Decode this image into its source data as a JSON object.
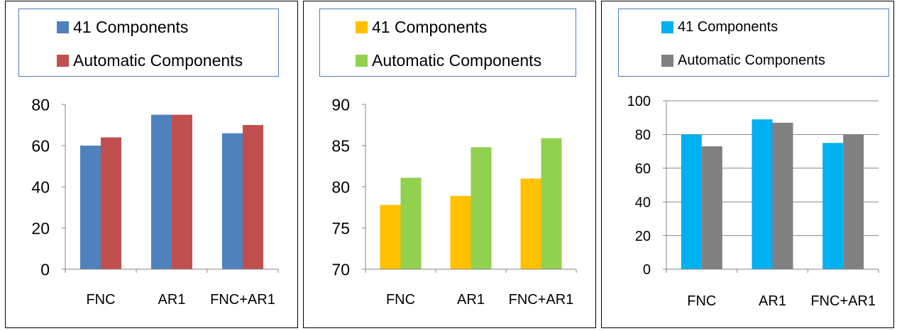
{
  "chart_data": [
    {
      "type": "bar",
      "categories": [
        "FNC",
        "AR1",
        "FNC+AR1"
      ],
      "series": [
        {
          "name": "41 Components",
          "values": [
            60,
            75,
            66
          ],
          "color": "#4f81bd"
        },
        {
          "name": "Automatic Components",
          "values": [
            64,
            75,
            70
          ],
          "color": "#c0504d"
        }
      ],
      "ylim": [
        0,
        80
      ],
      "yticks": [
        "0",
        "20",
        "40",
        "60",
        "80"
      ],
      "grid": false,
      "legend_position": "top"
    },
    {
      "type": "bar",
      "categories": [
        "FNC",
        "AR1",
        "FNC+AR1"
      ],
      "series": [
        {
          "name": "41 Components",
          "values": [
            77.8,
            78.9,
            81
          ],
          "color": "#ffc000"
        },
        {
          "name": "Automatic Components",
          "values": [
            81.1,
            84.8,
            85.9
          ],
          "color": "#92d050"
        }
      ],
      "ylim": [
        70,
        90
      ],
      "yticks": [
        "70",
        "75",
        "80",
        "85",
        "90"
      ],
      "grid": false,
      "legend_position": "top"
    },
    {
      "type": "bar",
      "categories": [
        "FNC",
        "AR1",
        "FNC+AR1"
      ],
      "series": [
        {
          "name": "41 Components",
          "values": [
            80,
            89,
            75
          ],
          "color": "#00b0f0"
        },
        {
          "name": "Automatic Components",
          "values": [
            73,
            87,
            80
          ],
          "color": "#808080"
        }
      ],
      "ylim": [
        0,
        100
      ],
      "yticks": [
        "0",
        "20",
        "40",
        "60",
        "80",
        "100"
      ],
      "grid": true,
      "legend_position": "top"
    }
  ]
}
